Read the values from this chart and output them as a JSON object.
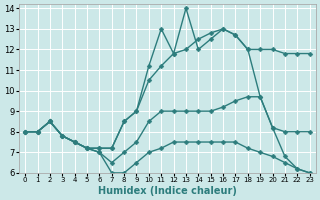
{
  "xlabel": "Humidex (Indice chaleur)",
  "xlim": [
    -0.5,
    23.5
  ],
  "ylim": [
    6,
    14.2
  ],
  "yticks": [
    6,
    7,
    8,
    9,
    10,
    11,
    12,
    13,
    14
  ],
  "xticks": [
    0,
    1,
    2,
    3,
    4,
    5,
    6,
    7,
    8,
    9,
    10,
    11,
    12,
    13,
    14,
    15,
    16,
    17,
    18,
    19,
    20,
    21,
    22,
    23
  ],
  "bg_color": "#cce8e8",
  "grid_color": "#ffffff",
  "line_color": "#2d7d7d",
  "line_width": 1.0,
  "marker": "D",
  "marker_size": 2.5,
  "series": [
    {
      "x": [
        0,
        1,
        2,
        3,
        4,
        5,
        6,
        7,
        8,
        9,
        10,
        11,
        12,
        13,
        14,
        15,
        16,
        17,
        18,
        19,
        20,
        21,
        22,
        23
      ],
      "y": [
        8,
        8,
        8.5,
        7.8,
        7.5,
        7.2,
        7.0,
        6.0,
        6.0,
        6.5,
        7.0,
        7.2,
        7.5,
        7.5,
        7.5,
        7.5,
        7.5,
        7.5,
        7.2,
        7.0,
        6.8,
        6.5,
        6.2,
        6.0
      ]
    },
    {
      "x": [
        0,
        1,
        2,
        3,
        4,
        5,
        6,
        7,
        8,
        9,
        10,
        11,
        12,
        13,
        14,
        15,
        16,
        17,
        18,
        19,
        20,
        21,
        22,
        23
      ],
      "y": [
        8,
        8,
        8.5,
        7.8,
        7.5,
        7.2,
        7.0,
        6.5,
        7.0,
        7.5,
        8.5,
        9.0,
        9.0,
        9.0,
        9.0,
        9.0,
        9.2,
        9.5,
        9.7,
        9.7,
        8.2,
        8.0,
        8.0,
        8.0
      ]
    },
    {
      "x": [
        0,
        1,
        2,
        3,
        4,
        5,
        6,
        7,
        8,
        9,
        10,
        11,
        12,
        13,
        14,
        15,
        16,
        17,
        18,
        19,
        20,
        21,
        22,
        23
      ],
      "y": [
        8,
        8,
        8.5,
        7.8,
        7.5,
        7.2,
        7.2,
        7.2,
        8.5,
        9.0,
        10.5,
        11.2,
        11.8,
        12.0,
        12.5,
        12.8,
        13.0,
        12.7,
        12.0,
        12.0,
        12.0,
        11.8,
        11.8,
        11.8
      ]
    },
    {
      "x": [
        0,
        1,
        2,
        3,
        4,
        5,
        6,
        7,
        8,
        9,
        10,
        11,
        12,
        13,
        14,
        15,
        16,
        17,
        18,
        19,
        20,
        21,
        22,
        23
      ],
      "y": [
        8,
        8,
        8.5,
        7.8,
        7.5,
        7.2,
        7.2,
        7.2,
        8.5,
        9.0,
        11.2,
        13.0,
        11.8,
        14.0,
        12.0,
        12.5,
        13.0,
        12.7,
        12.0,
        9.7,
        8.2,
        6.8,
        6.2,
        6.0
      ]
    }
  ]
}
